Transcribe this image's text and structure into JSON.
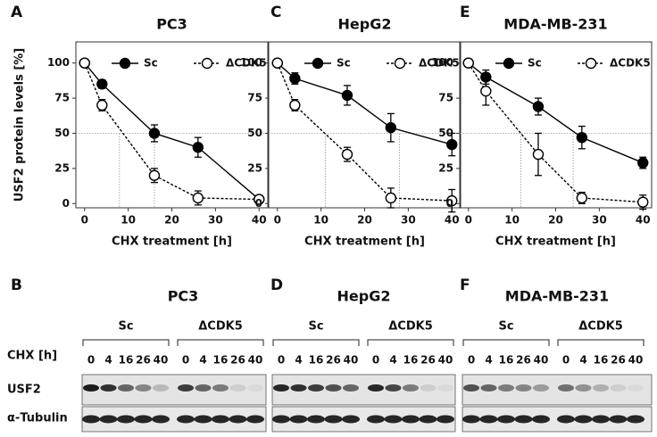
{
  "chart_data": [
    {
      "type": "line",
      "panel": "A",
      "title": "PC3",
      "ylabel": "USF2 protein levels [%]",
      "xlabel": "CHX treatment [h]",
      "x": [
        0,
        4,
        16,
        26,
        40
      ],
      "series": [
        {
          "name": "Sc",
          "color": "#000000",
          "marker": "filled",
          "linestyle": "solid",
          "values": [
            100,
            85,
            50,
            40,
            3
          ],
          "errors": [
            0,
            3,
            6,
            7,
            2
          ]
        },
        {
          "name": "ΔCDK5",
          "color": "#000000",
          "marker": "open",
          "linestyle": "dashed",
          "values": [
            100,
            70,
            20,
            4,
            3
          ],
          "errors": [
            0,
            4,
            5,
            5,
            2
          ]
        }
      ],
      "xlim": [
        -2,
        42
      ],
      "xticks": [
        0,
        10,
        20,
        30,
        40
      ],
      "ylim": [
        -3,
        115
      ],
      "yticks": [
        0,
        25,
        50,
        75,
        100
      ],
      "hline": 50,
      "vlines": [
        8,
        16
      ]
    },
    {
      "type": "line",
      "panel": "C",
      "title": "HepG2",
      "xlabel": "CHX treatment [h]",
      "x": [
        0,
        4,
        16,
        26,
        40
      ],
      "series": [
        {
          "name": "Sc",
          "color": "#000000",
          "marker": "filled",
          "linestyle": "solid",
          "values": [
            100,
            89,
            77,
            54,
            42
          ],
          "errors": [
            0,
            4,
            7,
            10,
            8
          ]
        },
        {
          "name": "ΔCDK5",
          "color": "#000000",
          "marker": "open",
          "linestyle": "dashed",
          "values": [
            100,
            70,
            35,
            4,
            2
          ],
          "errors": [
            0,
            4,
            5,
            7,
            8
          ]
        }
      ],
      "xlim": [
        -2,
        42
      ],
      "xticks": [
        0,
        10,
        20,
        30,
        40
      ],
      "ylim": [
        -3,
        115
      ],
      "yticks": [
        0,
        25,
        50,
        75,
        100
      ],
      "hline": 50,
      "vlines": [
        11,
        28
      ]
    },
    {
      "type": "line",
      "panel": "E",
      "title": "MDA-MB-231",
      "xlabel": "CHX treatment [h]",
      "x": [
        0,
        4,
        16,
        26,
        40
      ],
      "series": [
        {
          "name": "Sc",
          "color": "#000000",
          "marker": "filled",
          "linestyle": "solid",
          "values": [
            100,
            90,
            69,
            47,
            29
          ],
          "errors": [
            0,
            5,
            6,
            8,
            4
          ]
        },
        {
          "name": "ΔCDK5",
          "color": "#000000",
          "marker": "open",
          "linestyle": "dashed",
          "values": [
            100,
            80,
            35,
            4,
            1
          ],
          "errors": [
            0,
            10,
            15,
            4,
            5
          ]
        }
      ],
      "xlim": [
        -2,
        42
      ],
      "xticks": [
        0,
        10,
        20,
        30,
        40
      ],
      "ylim": [
        -3,
        115
      ],
      "yticks": [
        0,
        25,
        50,
        75,
        100
      ],
      "hline": 50,
      "vlines": [
        12,
        24
      ]
    }
  ],
  "blots": [
    {
      "panel": "B",
      "title": "PC3",
      "groups": [
        "Sc",
        "ΔCDK5"
      ],
      "lanes": [
        0,
        4,
        16,
        26,
        40
      ]
    },
    {
      "panel": "D",
      "title": "HepG2",
      "groups": [
        "Sc",
        "ΔCDK5"
      ],
      "lanes": [
        0,
        4,
        16,
        26,
        40
      ]
    },
    {
      "panel": "F",
      "title": "MDA-MB-231",
      "groups": [
        "Sc",
        "ΔCDK5"
      ],
      "lanes": [
        0,
        4,
        16,
        26,
        40
      ]
    }
  ],
  "treatment_label": "CHX [h]",
  "row_labels": [
    "USF2",
    "α-Tubulin"
  ]
}
